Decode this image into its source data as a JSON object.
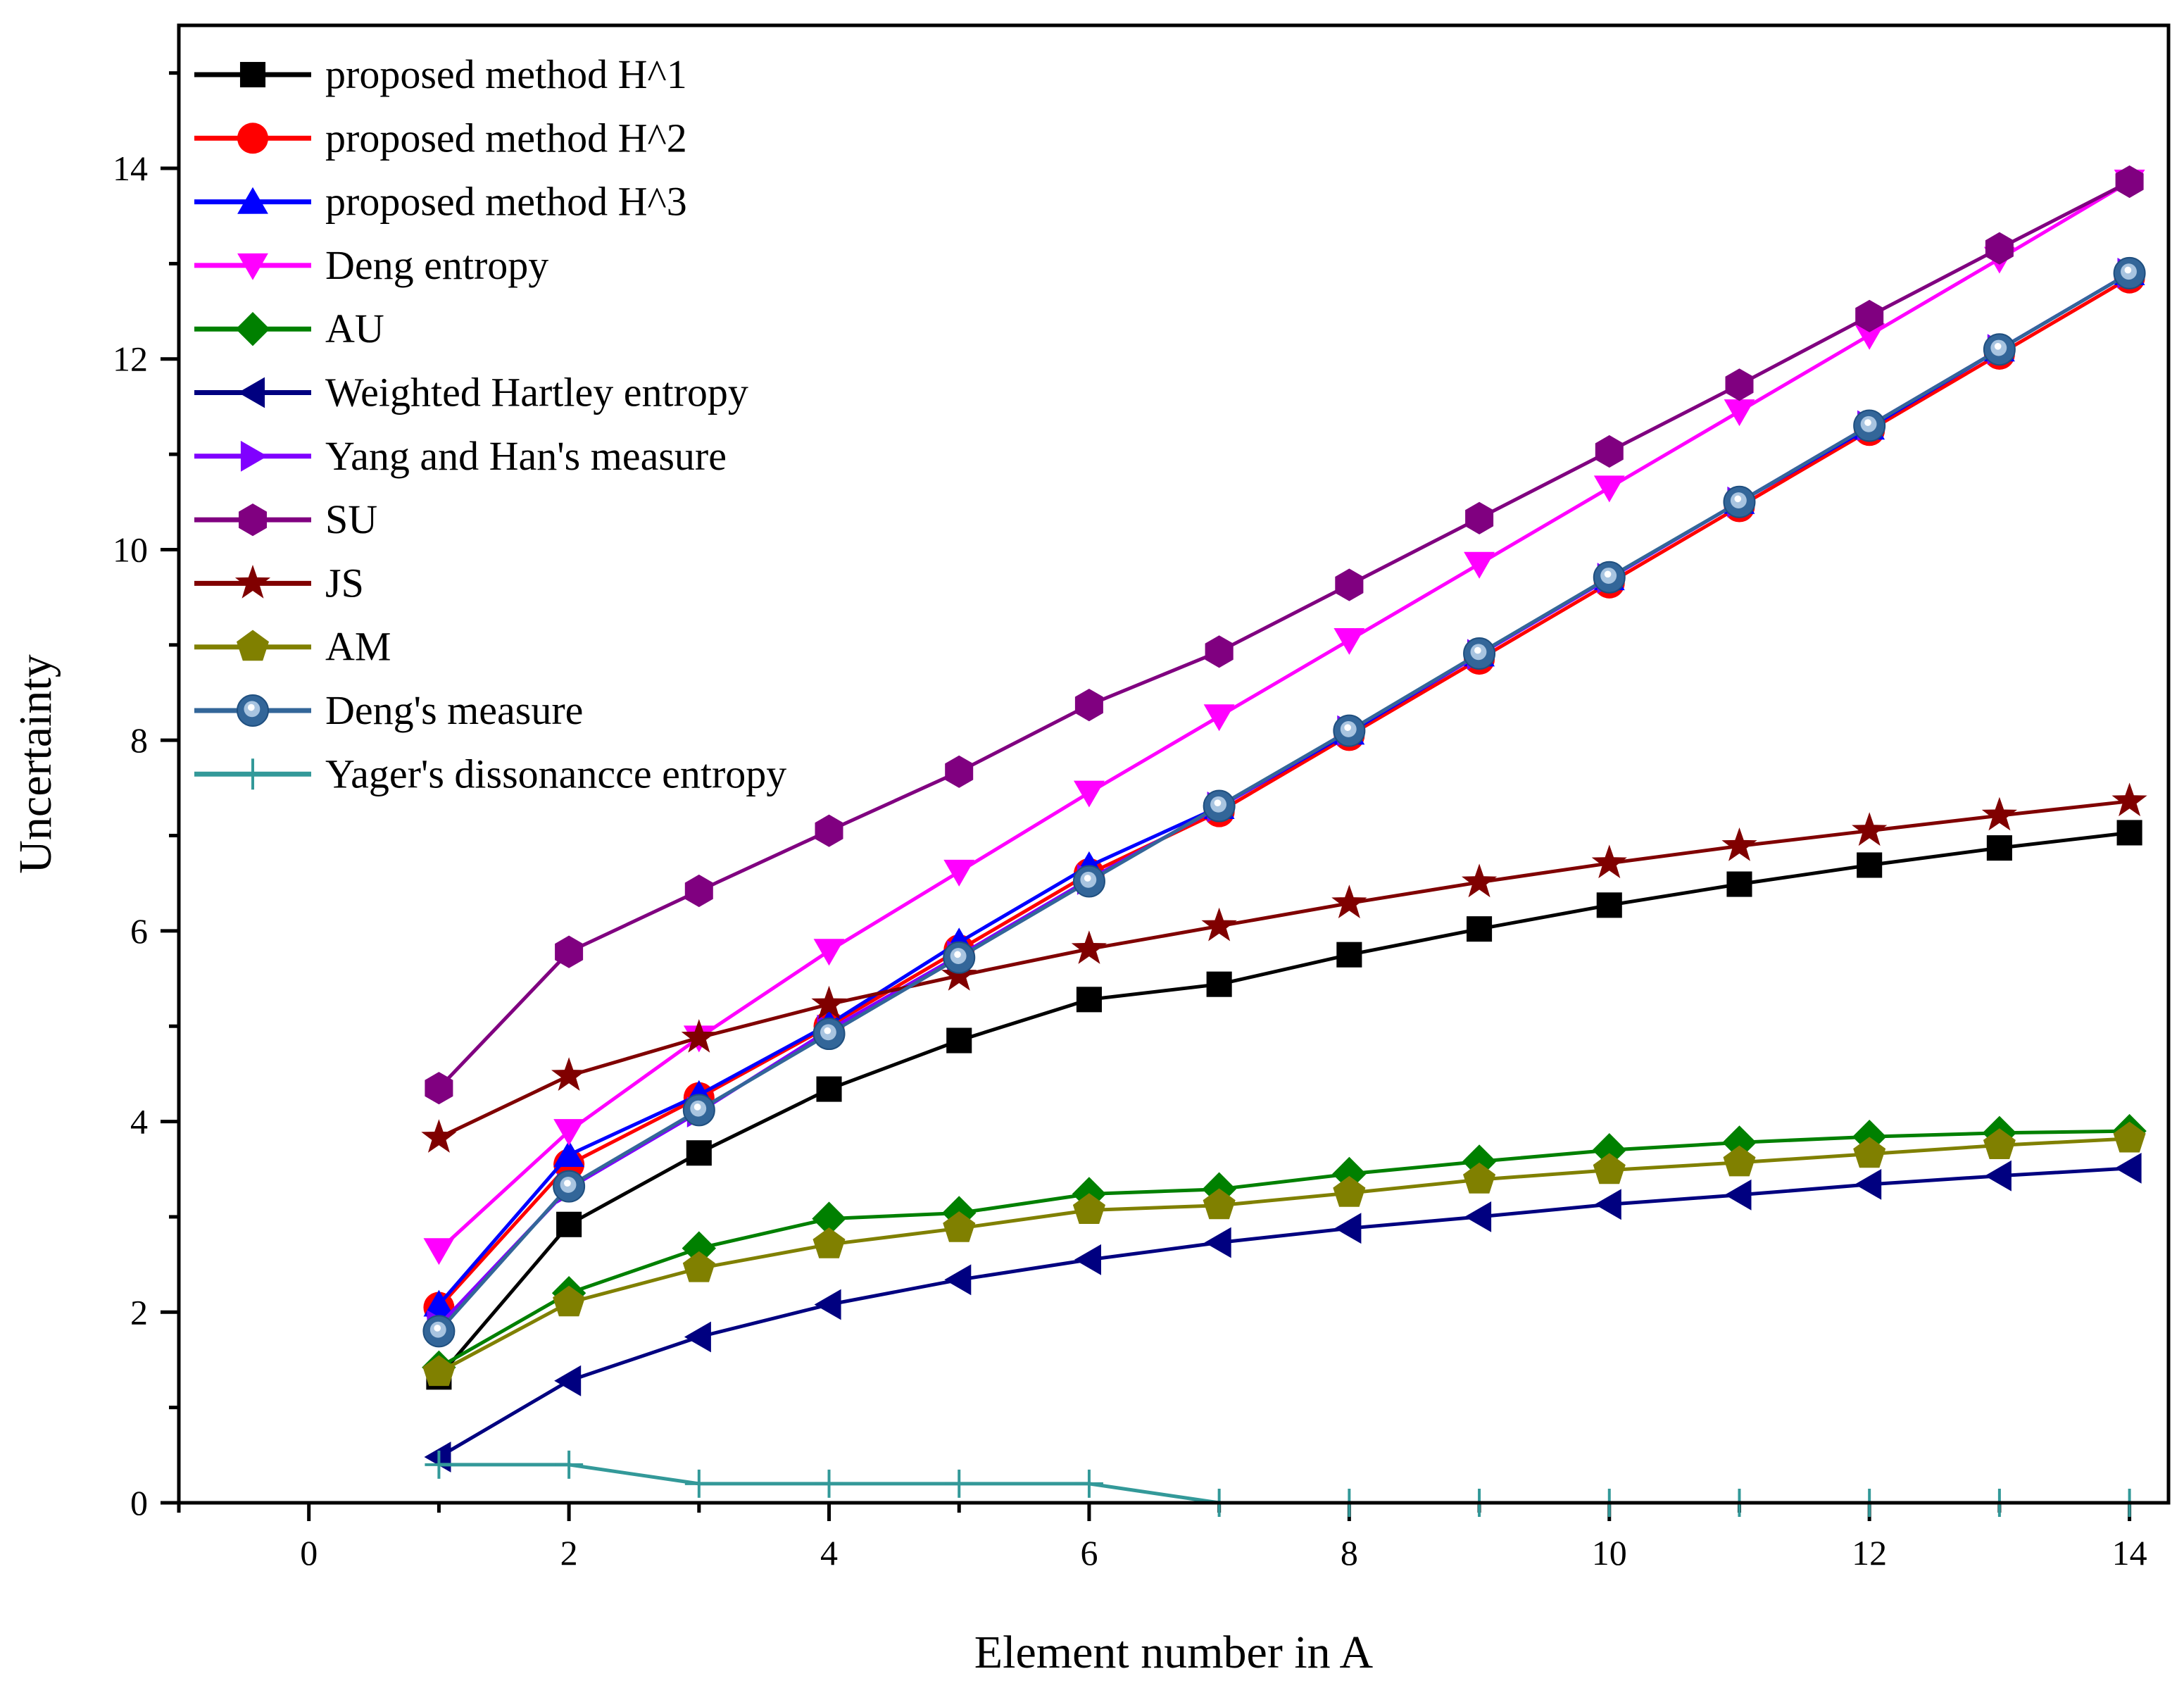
{
  "chart_data": {
    "type": "line",
    "title": "",
    "xlabel": "Element number in A",
    "ylabel": "Uncertainty",
    "xlim": [
      -1,
      14.3
    ],
    "ylim": [
      0,
      15.5
    ],
    "xticks": [
      0,
      2,
      4,
      6,
      8,
      10,
      12,
      14
    ],
    "yticks": [
      0,
      2,
      4,
      6,
      8,
      10,
      12,
      14
    ],
    "legend_position": "top-left",
    "x": [
      1,
      2,
      3,
      4,
      5,
      6,
      7,
      8,
      9,
      10,
      11,
      12,
      13,
      14
    ],
    "series": [
      {
        "name": "proposed method H^1",
        "color": "#000000",
        "marker": "square",
        "values": [
          1.32,
          2.92,
          3.67,
          4.34,
          4.85,
          5.28,
          5.44,
          5.75,
          6.02,
          6.27,
          6.49,
          6.69,
          6.87,
          7.03
        ]
      },
      {
        "name": "proposed method H^2",
        "color": "#ff0000",
        "marker": "circle",
        "values": [
          2.05,
          3.55,
          4.25,
          5.0,
          5.8,
          6.6,
          7.25,
          8.05,
          8.85,
          9.65,
          10.45,
          11.25,
          12.05,
          12.85
        ]
      },
      {
        "name": "proposed method H^3",
        "color": "#0000ff",
        "marker": "triangle-up",
        "values": [
          2.08,
          3.65,
          4.28,
          5.02,
          5.88,
          6.68,
          7.3,
          8.08,
          8.9,
          9.7,
          10.5,
          11.28,
          12.1,
          12.9
        ]
      },
      {
        "name": "Deng entropy",
        "color": "#ff00ff",
        "marker": "triangle-down",
        "values": [
          2.65,
          3.9,
          4.88,
          5.79,
          6.62,
          7.45,
          8.25,
          9.05,
          9.85,
          10.65,
          11.45,
          12.25,
          13.05,
          13.86
        ]
      },
      {
        "name": "AU",
        "color": "#008000",
        "marker": "diamond",
        "values": [
          1.42,
          2.2,
          2.67,
          2.98,
          3.04,
          3.24,
          3.29,
          3.45,
          3.58,
          3.7,
          3.78,
          3.84,
          3.88,
          3.9
        ]
      },
      {
        "name": "Weighted Hartley entropy",
        "color": "#000080",
        "marker": "triangle-left",
        "values": [
          0.48,
          1.28,
          1.74,
          2.08,
          2.34,
          2.55,
          2.73,
          2.88,
          3.0,
          3.13,
          3.23,
          3.34,
          3.43,
          3.51
        ]
      },
      {
        "name": "Yang and Han's measure",
        "color": "#8000ff",
        "marker": "triangle-right",
        "values": [
          1.86,
          3.3,
          4.1,
          4.96,
          5.74,
          6.54,
          7.3,
          8.1,
          8.9,
          9.7,
          10.5,
          11.3,
          12.1,
          12.9
        ]
      },
      {
        "name": "SU",
        "color": "#800080",
        "marker": "hexagon",
        "values": [
          4.35,
          5.78,
          6.42,
          7.05,
          7.67,
          8.37,
          8.93,
          9.63,
          10.33,
          11.03,
          11.73,
          12.45,
          13.16,
          13.86
        ]
      },
      {
        "name": "JS",
        "color": "#800000",
        "marker": "star",
        "values": [
          3.83,
          4.48,
          4.88,
          5.23,
          5.53,
          5.81,
          6.05,
          6.29,
          6.51,
          6.71,
          6.89,
          7.05,
          7.21,
          7.36
        ]
      },
      {
        "name": "AM",
        "color": "#808000",
        "marker": "pentagon",
        "values": [
          1.37,
          2.1,
          2.46,
          2.71,
          2.88,
          3.07,
          3.12,
          3.25,
          3.39,
          3.49,
          3.57,
          3.66,
          3.75,
          3.82
        ]
      },
      {
        "name": "Deng's measure",
        "color": "#336699",
        "marker": "sphere",
        "values": [
          1.8,
          3.32,
          4.12,
          4.92,
          5.72,
          6.52,
          7.31,
          8.1,
          8.91,
          9.71,
          10.5,
          11.3,
          12.1,
          12.9
        ]
      },
      {
        "name": "Yager's dissonancce entropy",
        "color": "#339999",
        "marker": "plus",
        "values": [
          0.4,
          0.4,
          0.2,
          0.2,
          0.2,
          0.2,
          0.0,
          0.0,
          0.0,
          0.0,
          0.0,
          0.0,
          0.0,
          0.0
        ]
      }
    ]
  }
}
